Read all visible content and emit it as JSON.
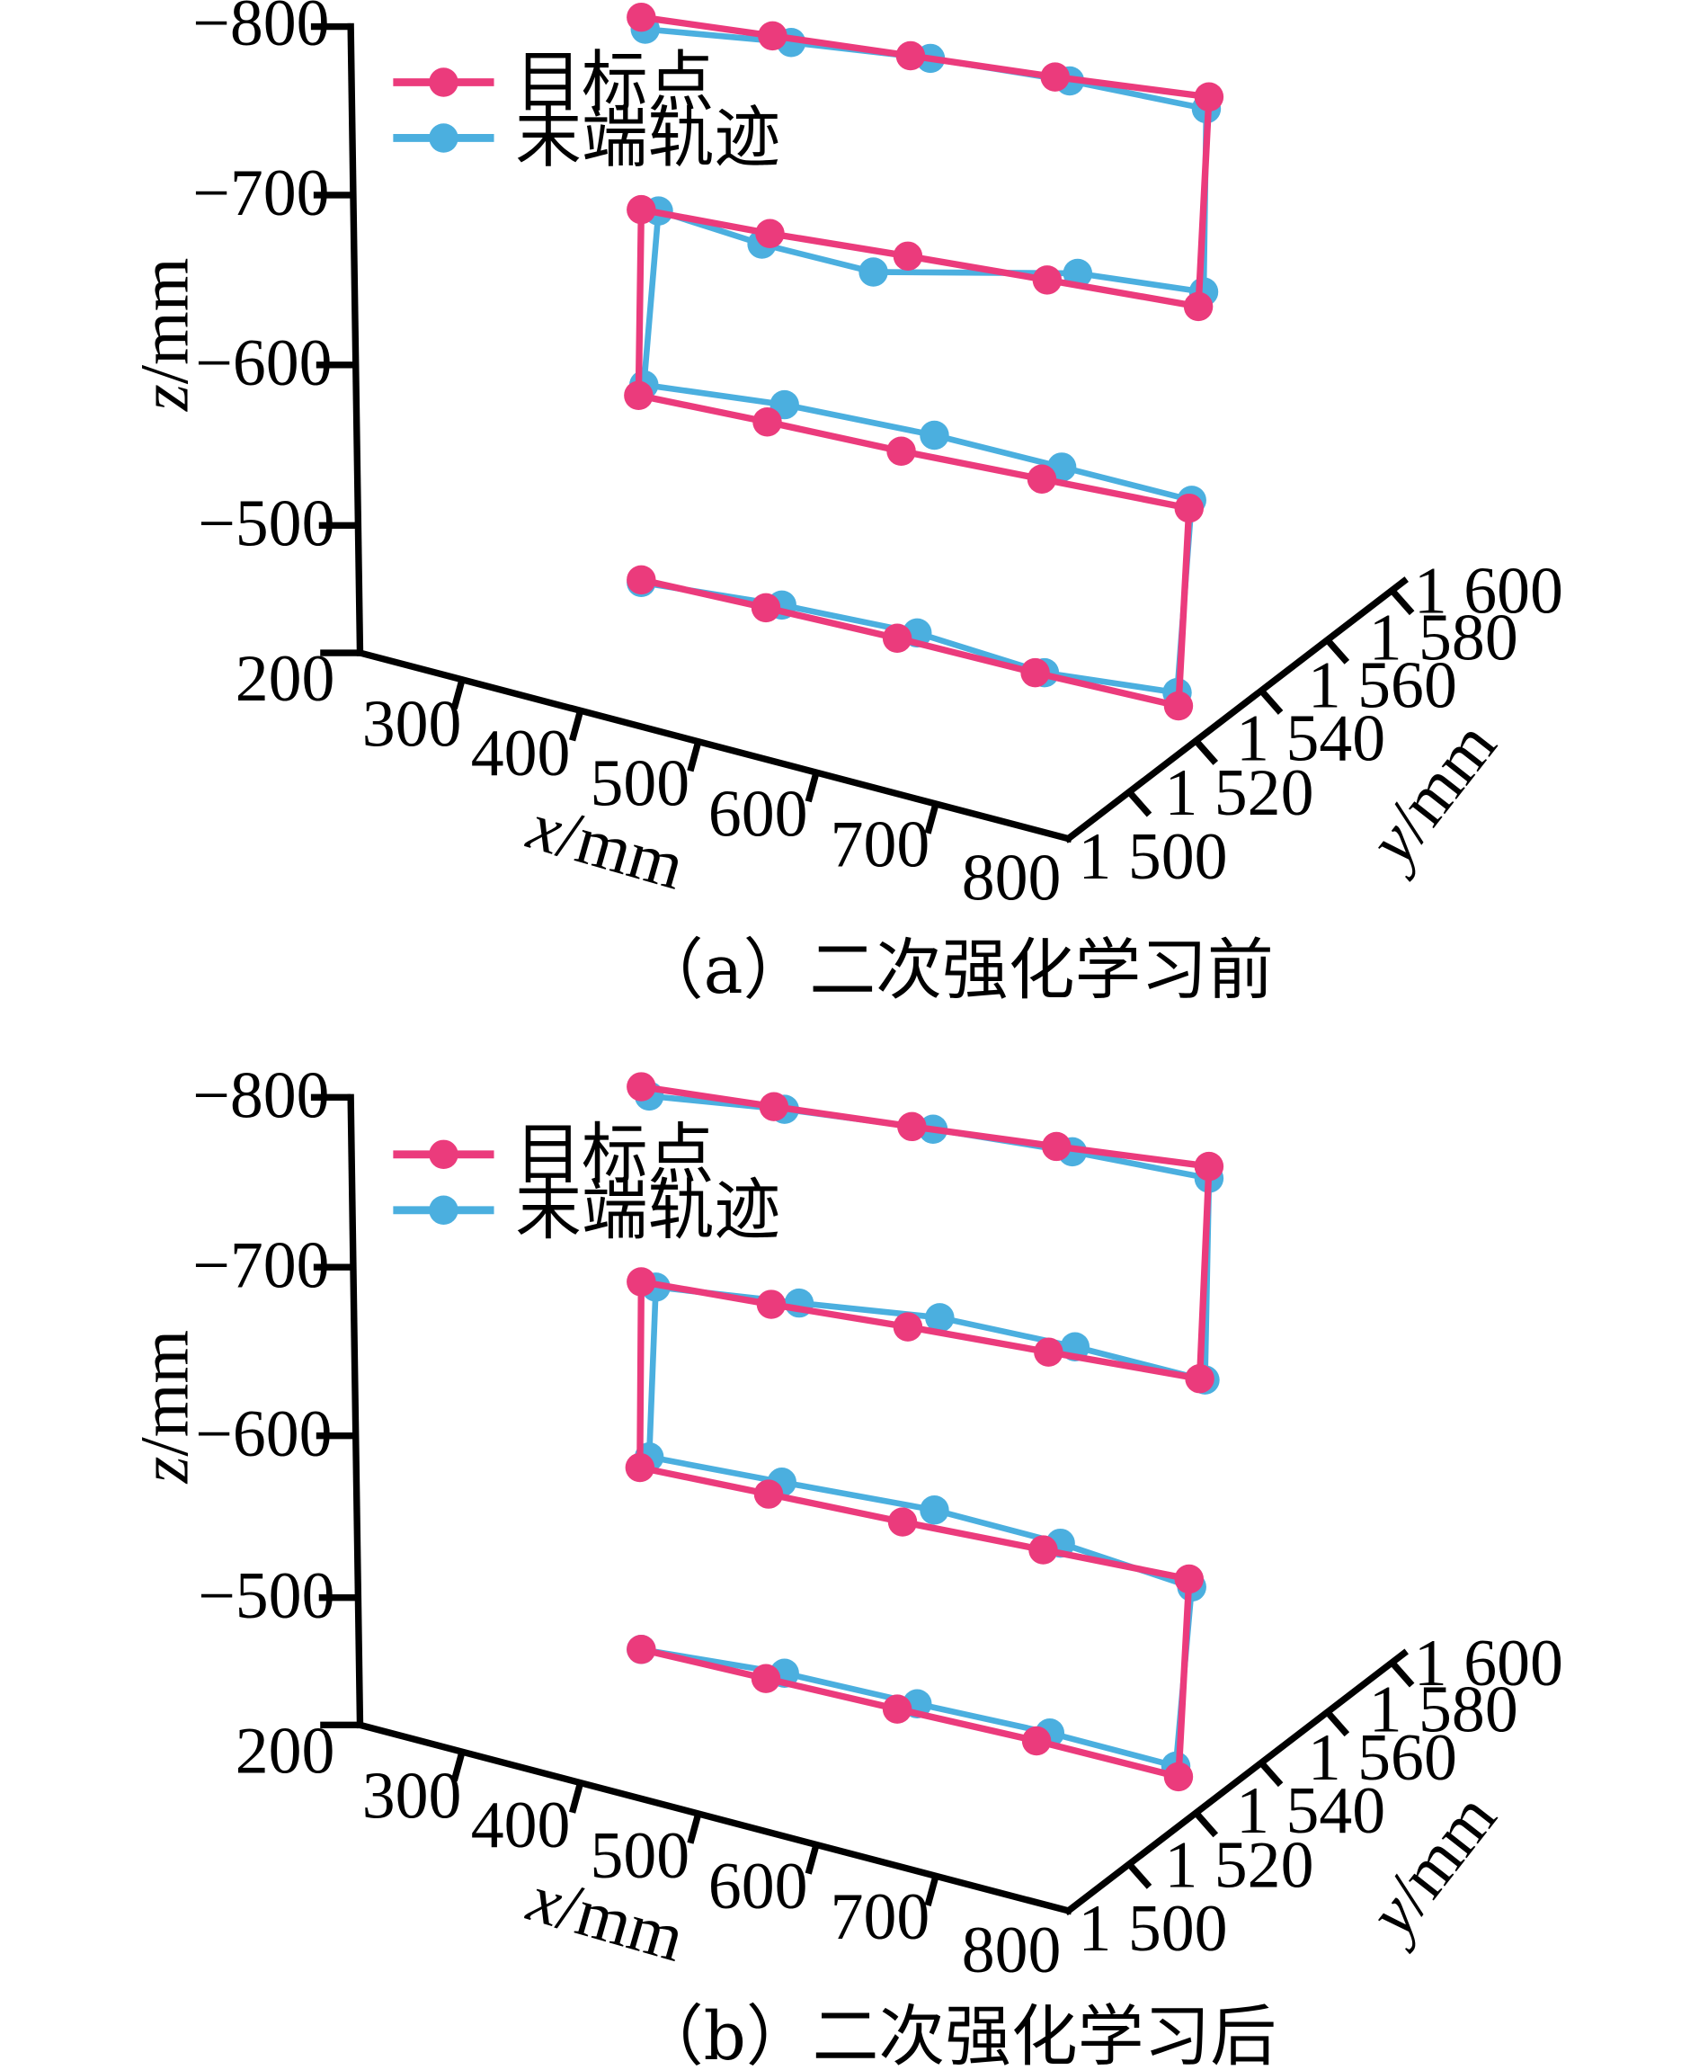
{
  "chart_data": [
    {
      "type": "line3d",
      "caption": "（a）二次强化学习前",
      "x_axis": {
        "label_var": "x",
        "label_unit": "/mm",
        "ticks": [
          "300",
          "400",
          "500",
          "600",
          "700",
          "800"
        ]
      },
      "y_axis": {
        "label_var": "y",
        "label_unit": "/mm",
        "ticks": [
          "1 500",
          "1 520",
          "1 540",
          "1 560",
          "1 580",
          "1 600"
        ]
      },
      "z_axis": {
        "label_var": "z",
        "label_unit": "/mm",
        "ticks": [
          "200",
          "−500",
          "−600",
          "−700",
          "−800"
        ]
      },
      "legend": {
        "position": "top-left",
        "entries": [
          {
            "label": "目标点",
            "color": "#EB3B7C"
          },
          {
            "label": "末端轨迹",
            "color": "#4BAFDF"
          }
        ]
      },
      "series": [
        {
          "name": "目标点",
          "color": "#EB3B7C",
          "points": [
            [
              483,
              437
            ],
            [
              577,
              458
            ],
            [
              676,
              481
            ],
            [
              780,
              507
            ],
            [
              888,
              532
            ],
            [
              896,
              383
            ],
            [
              785,
              361
            ],
            [
              679,
              340
            ],
            [
              578,
              318
            ],
            [
              481,
              298
            ],
            [
              483,
              158
            ],
            [
              580,
              176
            ],
            [
              684,
              193
            ],
            [
              789,
              211
            ],
            [
              903,
              231
            ],
            [
              911,
              73
            ],
            [
              795,
              58
            ],
            [
              686,
              42
            ],
            [
              582,
              27
            ],
            [
              483,
              13
            ]
          ]
        },
        {
          "name": "末端轨迹",
          "color": "#4BAFDF",
          "points": [
            [
              483,
              439
            ],
            [
              589,
              456
            ],
            [
              691,
              477
            ],
            [
              787,
              507
            ],
            [
              887,
              522
            ],
            [
              898,
              377
            ],
            [
              800,
              352
            ],
            [
              704,
              328
            ],
            [
              591,
              305
            ],
            [
              485,
              290
            ],
            [
              496,
              159
            ],
            [
              574,
              184
            ],
            [
              658,
              205
            ],
            [
              812,
              206
            ],
            [
              907,
              220
            ],
            [
              909,
              82
            ],
            [
              806,
              61
            ],
            [
              701,
              44
            ],
            [
              596,
              32
            ],
            [
              486,
              22
            ]
          ]
        }
      ]
    },
    {
      "type": "line3d",
      "caption": "（b）二次强化学习后",
      "x_axis": {
        "label_var": "x",
        "label_unit": "/mm",
        "ticks": [
          "300",
          "400",
          "500",
          "600",
          "700",
          "800"
        ]
      },
      "y_axis": {
        "label_var": "y",
        "label_unit": "/mm",
        "ticks": [
          "1 500",
          "1 520",
          "1 540",
          "1 560",
          "1 580",
          "1 600"
        ]
      },
      "z_axis": {
        "label_var": "z",
        "label_unit": "/mm",
        "ticks": [
          "200",
          "−500",
          "−600",
          "−700",
          "−800"
        ]
      },
      "legend": {
        "position": "top-left",
        "entries": [
          {
            "label": "目标点",
            "color": "#EB3B7C"
          },
          {
            "label": "末端轨迹",
            "color": "#4BAFDF"
          }
        ]
      },
      "series": [
        {
          "name": "目标点",
          "color": "#EB3B7C",
          "points": [
            [
              483,
              1243
            ],
            [
              577,
              1265
            ],
            [
              676,
              1288
            ],
            [
              781,
              1312
            ],
            [
              888,
              1339
            ],
            [
              896,
              1190
            ],
            [
              786,
              1168
            ],
            [
              680,
              1147
            ],
            [
              579,
              1126
            ],
            [
              482,
              1106
            ],
            [
              483,
              966
            ],
            [
              581,
              983
            ],
            [
              684,
              1000
            ],
            [
              790,
              1019
            ],
            [
              904,
              1039
            ],
            [
              911,
              879
            ],
            [
              796,
              864
            ],
            [
              687,
              849
            ],
            [
              583,
              834
            ],
            [
              483,
              819
            ]
          ]
        },
        {
          "name": "末端轨迹",
          "color": "#4BAFDF",
          "points": [
            [
              483,
              1243
            ],
            [
              591,
              1261
            ],
            [
              691,
              1284
            ],
            [
              791,
              1306
            ],
            [
              886,
              1331
            ],
            [
              898,
              1196
            ],
            [
              799,
              1163
            ],
            [
              704,
              1138
            ],
            [
              589,
              1117
            ],
            [
              489,
              1098
            ],
            [
              494,
              970
            ],
            [
              602,
              982
            ],
            [
              708,
              993
            ],
            [
              810,
              1015
            ],
            [
              908,
              1040
            ],
            [
              911,
              888
            ],
            [
              808,
              868
            ],
            [
              703,
              851
            ],
            [
              591,
              836
            ],
            [
              489,
              826
            ]
          ]
        }
      ]
    }
  ]
}
